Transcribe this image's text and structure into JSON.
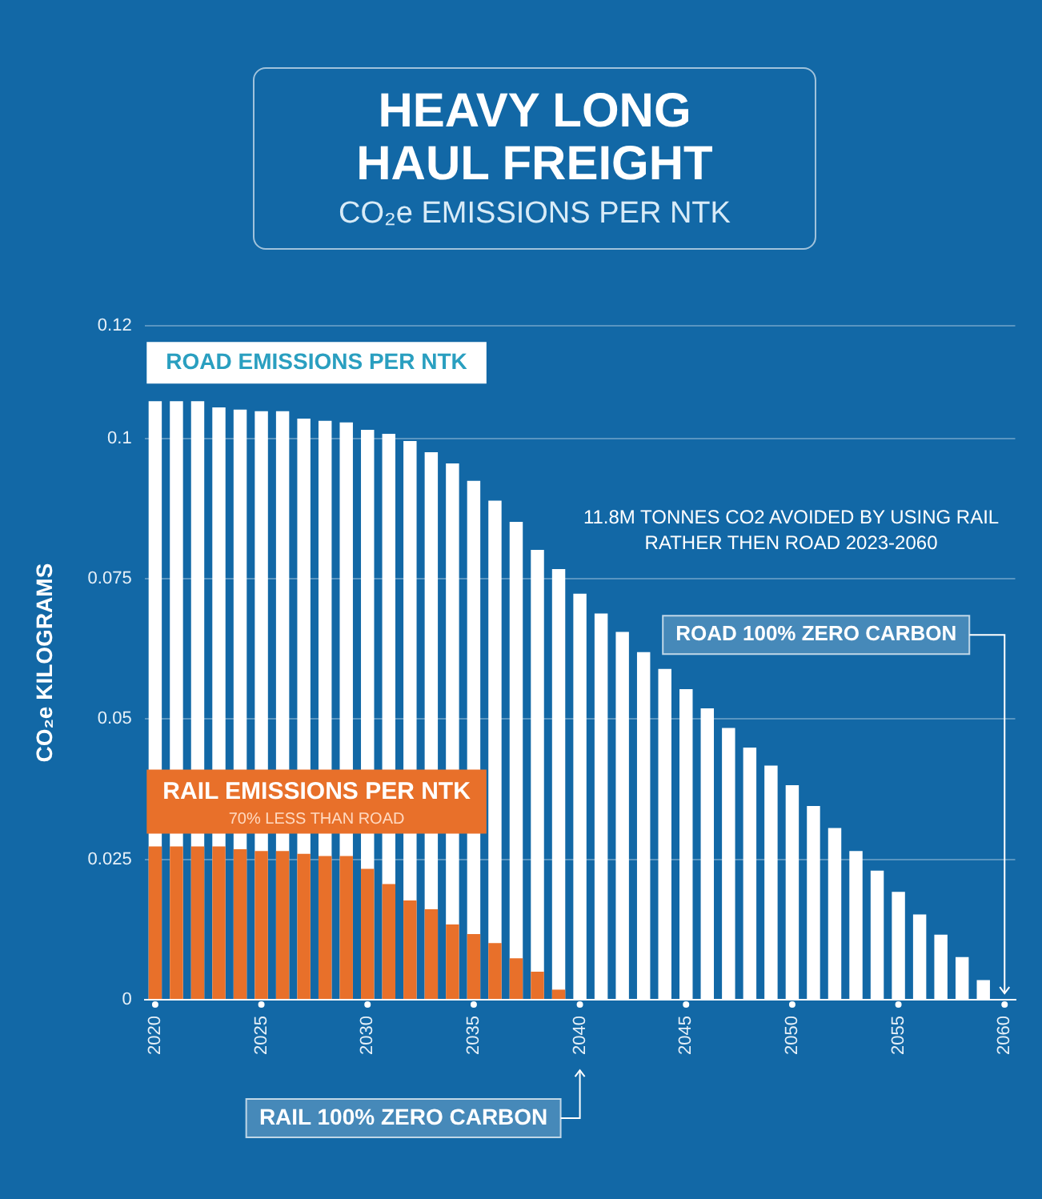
{
  "chart_data": {
    "type": "bar",
    "title": "HEAVY LONG HAUL FREIGHT",
    "subtitle": "CO₂e EMISSIONS PER NTK",
    "ylabel": "CO₂e KILOGRAMS",
    "categories": [
      "2020",
      null,
      null,
      null,
      null,
      "2025",
      null,
      null,
      null,
      null,
      "2030",
      null,
      null,
      null,
      null,
      "2035",
      null,
      null,
      null,
      null,
      "2040",
      null,
      null,
      null,
      null,
      "2045",
      null,
      null,
      null,
      null,
      "2050",
      null,
      null,
      null,
      null,
      "2055",
      null,
      null,
      null,
      null,
      "2060"
    ],
    "series": [
      {
        "name": "ROAD EMISSIONS PER NTK",
        "color": "#ffffff",
        "values": [
          0.1066,
          0.1066,
          0.1066,
          0.1055,
          0.1051,
          0.1048,
          0.1048,
          0.1035,
          0.1031,
          0.1028,
          0.1015,
          0.1008,
          0.0995,
          0.0975,
          0.0955,
          0.0924,
          0.0889,
          0.0851,
          0.0801,
          0.0767,
          0.0723,
          0.0688,
          0.0655,
          0.0619,
          0.0589,
          0.0553,
          0.0519,
          0.0484,
          0.0449,
          0.0417,
          0.0382,
          0.0345,
          0.0306,
          0.0265,
          0.023,
          0.0192,
          0.0152,
          0.0116,
          0.0076,
          0.0035,
          0
        ]
      },
      {
        "name": "RAIL EMISSIONS PER NTK",
        "color": "#e8702a",
        "values": [
          0.0273,
          0.0273,
          0.0273,
          0.0273,
          0.0268,
          0.0265,
          0.0265,
          0.026,
          0.0256,
          0.0256,
          0.0233,
          0.0206,
          0.0177,
          0.0161,
          0.0134,
          0.0117,
          0.0101,
          0.0074,
          0.005,
          0.0018,
          0,
          0,
          0,
          0,
          0,
          0,
          0,
          0,
          0,
          0,
          0,
          0,
          0,
          0,
          0,
          0,
          0,
          0,
          0,
          0,
          0
        ]
      }
    ],
    "ylim": [
      0,
      0.12
    ],
    "yticks": [
      0,
      0.025,
      0.05,
      0.075,
      0.1,
      0.12
    ],
    "grid": "y",
    "legend": false,
    "annotations": [
      "70% LESS THAN ROAD",
      "11.8M TONNES CO2 AVOIDED BY USING RAIL RATHER THEN ROAD 2023-2060",
      {
        "text": "ROAD 100% ZERO CARBON",
        "x": "2060",
        "y": 0
      },
      "RAIL 100% ZERO CARBON"
    ]
  }
}
